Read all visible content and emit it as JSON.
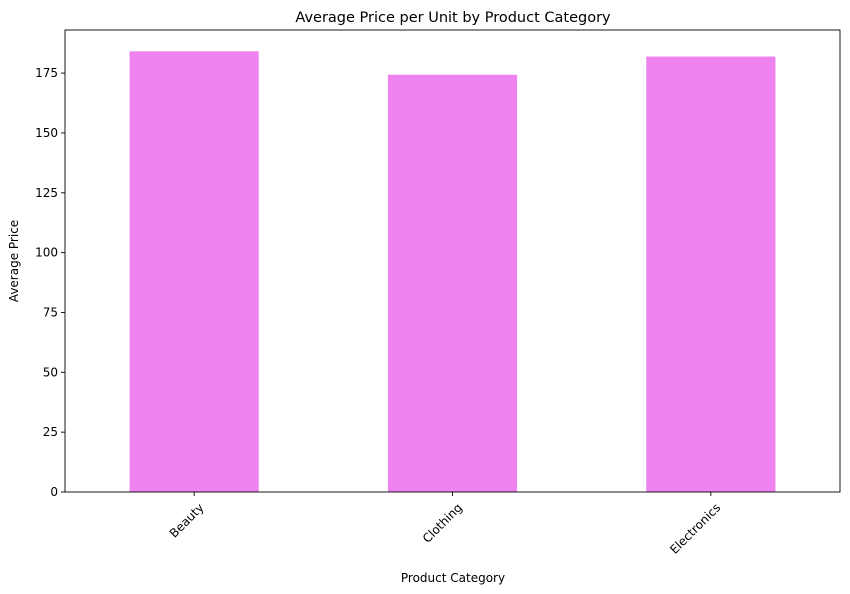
{
  "chart_data": {
    "type": "bar",
    "title": "Average Price per Unit by Product Category",
    "xlabel": "Product Category",
    "ylabel": "Average Price",
    "categories": [
      "Beauty",
      "Clothing",
      "Electronics"
    ],
    "values": [
      184.1,
      174.3,
      181.9
    ],
    "ylim": [
      0,
      193
    ],
    "yticks": [
      0,
      25,
      50,
      75,
      100,
      125,
      150,
      175
    ],
    "bar_color": "#ee82ee",
    "grid": false,
    "legend": "none",
    "xtick_rotation_deg": 45
  }
}
